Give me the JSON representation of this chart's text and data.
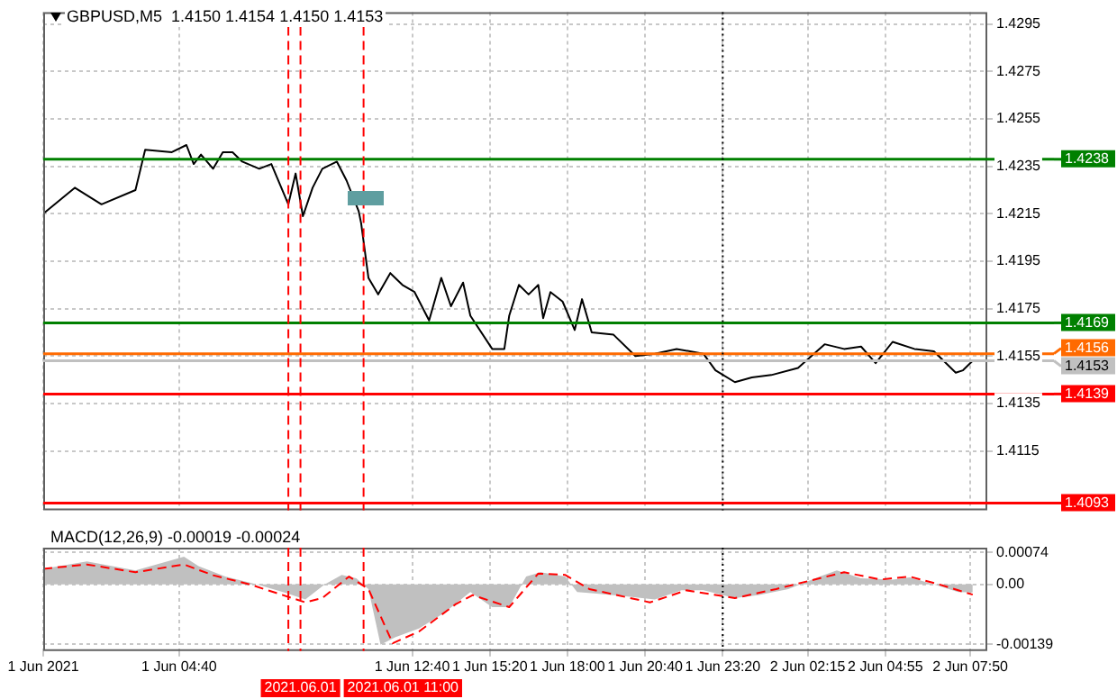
{
  "chart_data": [
    {
      "type": "line",
      "title": "GBPUSD,M5  1.4150 1.4154 1.4150 1.4153",
      "x": [
        "2021-06-01T00:00",
        "2021-06-01T01:05",
        "2021-06-01T02:00",
        "2021-06-01T03:10",
        "2021-06-01T03:30",
        "2021-06-01T04:25",
        "2021-06-01T04:55",
        "2021-06-01T05:10",
        "2021-06-01T05:25",
        "2021-06-01T05:50",
        "2021-06-01T06:10",
        "2021-06-01T06:30",
        "2021-06-01T06:50",
        "2021-06-01T07:25",
        "2021-06-01T07:50",
        "2021-06-01T08:25",
        "2021-06-01T08:40",
        "2021-06-01T08:55",
        "2021-06-01T09:15",
        "2021-06-01T09:35",
        "2021-06-01T10:05",
        "2021-06-01T10:25",
        "2021-06-01T10:50",
        "2021-06-01T10:55",
        "2021-06-01T11:10",
        "2021-06-01T11:30",
        "2021-06-01T11:55",
        "2021-06-01T12:20",
        "2021-06-01T12:45",
        "2021-06-01T13:15",
        "2021-06-01T13:40",
        "2021-06-01T14:00",
        "2021-06-01T14:25",
        "2021-06-01T14:40",
        "2021-06-01T15:25",
        "2021-06-01T15:50",
        "2021-06-01T16:00",
        "2021-06-01T16:20",
        "2021-06-01T16:40",
        "2021-06-01T17:00",
        "2021-06-01T17:10",
        "2021-06-01T17:25",
        "2021-06-01T17:50",
        "2021-06-01T18:15",
        "2021-06-01T18:30",
        "2021-06-01T18:50",
        "2021-06-01T19:35",
        "2021-06-01T20:20",
        "2021-06-01T21:00",
        "2021-06-01T21:45",
        "2021-06-01T22:40",
        "2021-06-01T23:05",
        "2021-06-01T23:45",
        "2021-06-02T00:20",
        "2021-06-02T01:00",
        "2021-06-02T01:55",
        "2021-06-02T02:50",
        "2021-06-02T03:30",
        "2021-06-02T04:05",
        "2021-06-02T04:35",
        "2021-06-02T05:10",
        "2021-06-02T05:55",
        "2021-06-02T06:35",
        "2021-06-02T07:20",
        "2021-06-02T07:35",
        "2021-06-02T07:55"
      ],
      "series": [
        {
          "color": "#000000",
          "values": [
            1.4215,
            1.4226,
            1.4219,
            1.4225,
            1.4242,
            1.4241,
            1.4244,
            1.4236,
            1.424,
            1.4234,
            1.4241,
            1.4241,
            1.4237,
            1.4234,
            1.4236,
            1.4219,
            1.4232,
            1.4214,
            1.4226,
            1.4234,
            1.4237,
            1.4229,
            1.4216,
            1.4211,
            1.4188,
            1.4181,
            1.419,
            1.4185,
            1.4182,
            1.417,
            1.4188,
            1.4176,
            1.4186,
            1.4172,
            1.4158,
            1.4158,
            1.4172,
            1.4185,
            1.4181,
            1.4185,
            1.4171,
            1.4182,
            1.4178,
            1.4166,
            1.4179,
            1.4165,
            1.4164,
            1.4155,
            1.4156,
            1.4158,
            1.4156,
            1.4149,
            1.4144,
            1.4146,
            1.4147,
            1.415,
            1.416,
            1.4158,
            1.4159,
            1.4152,
            1.4161,
            1.4158,
            1.4157,
            1.4148,
            1.4149,
            1.4153
          ]
        }
      ],
      "xlim": [
        "2021-06-01T00:00",
        "2021-06-02T08:25"
      ],
      "xticks": [
        {
          "value": "2021-06-01T00:00",
          "label": null
        },
        {
          "value": "2021-06-01T04:40",
          "label": null
        },
        {
          "value": "2021-06-01T12:40",
          "label": null
        },
        {
          "value": "2021-06-01T15:20",
          "label": null
        },
        {
          "value": "2021-06-01T18:00",
          "label": null
        },
        {
          "value": "2021-06-01T20:40",
          "label": null
        },
        {
          "value": "2021-06-01T23:20",
          "label": null
        },
        {
          "value": "2021-06-02T02:15",
          "label": null
        },
        {
          "value": "2021-06-02T04:55",
          "label": null
        },
        {
          "value": "2021-06-02T07:50",
          "label": null
        }
      ],
      "ylim": [
        1.409,
        1.43
      ],
      "yticks": [
        1.4115,
        1.4135,
        1.4155,
        1.4175,
        1.4195,
        1.4215,
        1.4235,
        1.4255,
        1.4275,
        1.4295
      ],
      "tick_labels": "y",
      "grid": true,
      "ref_lines": [
        {
          "axis": "y",
          "value": 1.4238,
          "label": "1.4238",
          "color": "#008000"
        },
        {
          "axis": "y",
          "value": 1.4169,
          "label": "1.4169",
          "color": "#008000"
        },
        {
          "axis": "y",
          "value": 1.4156,
          "label": "1.4156",
          "color": "#ff6a00"
        },
        {
          "axis": "y",
          "value": 1.4153,
          "label": "1.4153",
          "color": "#c0c0c0"
        },
        {
          "axis": "y",
          "value": 1.4139,
          "label": "1.4139",
          "color": "#ff0000"
        },
        {
          "axis": "y",
          "value": 1.4093,
          "label": "1.4093",
          "color": "#ff0000"
        },
        {
          "axis": "x",
          "value": "2021-06-01T08:25",
          "color": "#ff0000",
          "line_style": "dashed"
        },
        {
          "axis": "x",
          "value": "2021-06-01T08:50",
          "color": "#ff0000",
          "line_style": "dashed"
        },
        {
          "axis": "x",
          "value": "2021-06-01T11:00",
          "color": "#ff0000",
          "line_style": "dashed"
        },
        {
          "axis": "x",
          "value": "2021-06-01T23:20",
          "color": "#000000",
          "line_style": "dotted"
        }
      ]
    },
    {
      "type": "line",
      "title": "MACD(12,26,9) -0.00019 -0.00024",
      "series": [
        {
          "type": "area",
          "color": "#c0c0c0",
          "x": [
            "2021-06-01T00:00",
            "2021-06-01T01:30",
            "2021-06-01T03:10",
            "2021-06-01T04:50",
            "2021-06-01T05:20",
            "2021-06-01T06:15",
            "2021-06-01T07:20",
            "2021-06-01T08:20",
            "2021-06-01T09:00",
            "2021-06-01T09:40",
            "2021-06-01T10:15",
            "2021-06-01T10:45",
            "2021-06-01T11:10",
            "2021-06-01T11:35",
            "2021-06-01T12:05",
            "2021-06-01T12:55",
            "2021-06-01T13:45",
            "2021-06-01T14:40",
            "2021-06-01T15:25",
            "2021-06-01T16:00",
            "2021-06-01T16:35",
            "2021-06-01T17:05",
            "2021-06-01T17:55",
            "2021-06-01T18:20",
            "2021-06-01T18:55",
            "2021-06-01T20:00",
            "2021-06-01T21:00",
            "2021-06-01T21:55",
            "2021-06-01T22:40",
            "2021-06-01T23:45",
            "2021-06-02T00:35",
            "2021-06-02T01:35",
            "2021-06-02T02:40",
            "2021-06-02T03:15",
            "2021-06-02T04:05",
            "2021-06-02T05:10",
            "2021-06-02T05:45",
            "2021-06-02T06:35",
            "2021-06-02T07:25",
            "2021-06-02T07:55"
          ],
          "values": [
            0.00036,
            0.00053,
            0.00032,
            0.00064,
            0.00042,
            0.00018,
            0,
            -0.0002,
            -0.00035,
            0,
            0.00022,
            0.00014,
            -0.00011,
            -0.0014,
            -0.00123,
            -0.00102,
            -0.00067,
            -0.00018,
            -0.00053,
            -0.00053,
            0.00018,
            0.00028,
            0.00018,
            -0.00018,
            -0.00021,
            -0.00028,
            -0.00035,
            -0.00014,
            -0.00014,
            -0.00032,
            -0.00025,
            -0.00011,
            0.00018,
            0.00032,
            0.00014,
            0.00011,
            0.00016,
            0,
            -0.00018,
            -0.00019
          ]
        },
        {
          "color": "#ff0000",
          "line_style": "dashed",
          "x": [
            "2021-06-01T00:00",
            "2021-06-01T01:30",
            "2021-06-01T03:10",
            "2021-06-01T04:50",
            "2021-06-01T05:50",
            "2021-06-01T07:05",
            "2021-06-01T09:00",
            "2021-06-01T09:35",
            "2021-06-01T10:30",
            "2021-06-01T11:10",
            "2021-06-01T12:00",
            "2021-06-01T12:55",
            "2021-06-01T14:10",
            "2021-06-01T14:45",
            "2021-06-01T16:00",
            "2021-06-01T17:00",
            "2021-06-01T17:55",
            "2021-06-01T18:45",
            "2021-06-01T20:50",
            "2021-06-01T22:05",
            "2021-06-01T23:45",
            "2021-06-02T01:10",
            "2021-06-02T03:30",
            "2021-06-02T04:45",
            "2021-06-02T05:45",
            "2021-06-02T06:45",
            "2021-06-02T07:55"
          ],
          "values": [
            0.00036,
            0.00046,
            0.00028,
            0.00046,
            0.00021,
            0,
            -0.00042,
            -0.00032,
            0.00018,
            -0.00011,
            -0.00137,
            -0.00109,
            -0.00046,
            -0.00025,
            -0.00053,
            0.00025,
            0.00022,
            -0.00011,
            -0.00042,
            -0.00014,
            -0.00032,
            -0.00011,
            0.00028,
            0.00011,
            0.00018,
            0,
            -0.00024
          ]
        }
      ],
      "xlim": [
        "2021-06-01T00:00",
        "2021-06-02T08:25"
      ],
      "xticks": [
        {
          "value": "2021-06-01T00:00",
          "label": "1 Jun 2021"
        },
        {
          "value": "2021-06-01T04:40",
          "label": "1 Jun 04:40"
        },
        {
          "value": "2021-06-01T12:40",
          "label": "1 Jun 12:40"
        },
        {
          "value": "2021-06-01T15:20",
          "label": "1 Jun 15:20"
        },
        {
          "value": "2021-06-01T18:00",
          "label": "1 Jun 18:00"
        },
        {
          "value": "2021-06-01T20:40",
          "label": "1 Jun 20:40"
        },
        {
          "value": "2021-06-01T23:20",
          "label": "1 Jun 23:20"
        },
        {
          "value": "2021-06-02T02:15",
          "label": "2 Jun 02:15"
        },
        {
          "value": "2021-06-02T04:55",
          "label": "2 Jun 04:55"
        },
        {
          "value": "2021-06-02T07:50",
          "label": "2 Jun 07:50"
        }
      ],
      "ylim": [
        -0.00155,
        0.00085
      ],
      "yticks": [
        -0.00139,
        {
          "value": 0,
          "label": "0.00"
        },
        0.00074
      ],
      "grid": true,
      "ref_lines": [
        {
          "axis": "x",
          "value": "2021-06-01T08:25",
          "color": "#ff0000",
          "line_style": "dashed"
        },
        {
          "axis": "x",
          "value": "2021-06-01T08:50",
          "label": "2021.06.01",
          "color": "#ff0000",
          "line_style": "dashed"
        },
        {
          "axis": "x",
          "value": "2021-06-01T11:00",
          "label": "2021.06.01 11:00",
          "color": "#ff0000",
          "line_style": "dashed"
        },
        {
          "axis": "x",
          "value": "2021-06-01T23:20",
          "color": "#000000",
          "line_style": "dotted"
        }
      ]
    }
  ]
}
